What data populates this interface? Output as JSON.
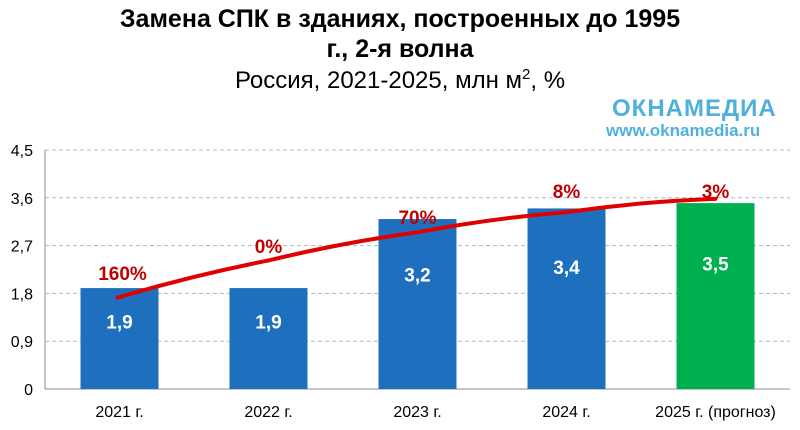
{
  "header": {
    "title_line1": "Замена СПК в зданиях, построенных до 1995",
    "title_line2": "г., 2-я волна",
    "subtitle_text": "Россия, 2021-2025, млн м",
    "subtitle_sup": "2",
    "subtitle_tail": ", %"
  },
  "logo": {
    "name": "ОКНАМЕДИА",
    "url": "www.oknamedia.ru",
    "color": "#4fb0dc"
  },
  "chart_data": {
    "type": "bar",
    "title": "Замена СПК в зданиях, построенных до 1995 г., 2-я волна",
    "subtitle": "Россия, 2021-2025, млн м2, %",
    "categories": [
      "2021 г.",
      "2022 г.",
      "2023 г.",
      "2024 г.",
      "2025 г. (прогноз)"
    ],
    "values": [
      1.9,
      1.9,
      3.2,
      3.4,
      3.5
    ],
    "value_labels": [
      "1,9",
      "1,9",
      "3,2",
      "3,4",
      "3,5"
    ],
    "growth_labels": [
      "160%",
      "0%",
      "70%",
      "8%",
      "3%"
    ],
    "bar_colors": [
      "#1f6fbf",
      "#1f6fbf",
      "#1f6fbf",
      "#1f6fbf",
      "#00b050"
    ],
    "trend_color": "#e00000",
    "growth_label_color": "#c00000",
    "trend_line": [
      1.72,
      2.42,
      2.95,
      3.33,
      3.58
    ],
    "ylim": [
      0,
      4.5
    ],
    "yticks": [
      0,
      0.9,
      1.8,
      2.7,
      3.6,
      4.5
    ],
    "ytick_labels": [
      "0",
      "0,9",
      "1,8",
      "2,7",
      "3,6",
      "4,5"
    ],
    "grid": true,
    "legend": "none"
  }
}
